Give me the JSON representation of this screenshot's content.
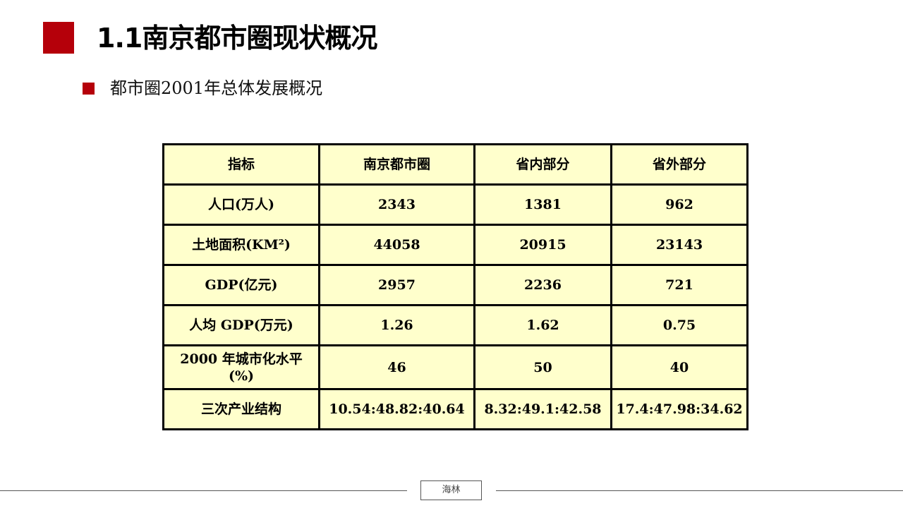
{
  "title": "1.1南京都市圈现状概况",
  "subtitle": "都市圈2001年总体发展概况",
  "table": {
    "headers": [
      "指标",
      "南京都市圈",
      "省内部分",
      "省外部分"
    ],
    "rows": [
      [
        "人口(万人)",
        "2343",
        "1381",
        "962"
      ],
      [
        "土地面积(KM²)",
        "44058",
        "20915",
        "23143"
      ],
      [
        "GDP(亿元)",
        "2957",
        "2236",
        "721"
      ],
      [
        "人均 GDP(万元)",
        "1.26",
        "1.62",
        "0.75"
      ],
      [
        "2000 年城市化水平(%)",
        "46",
        "50",
        "40"
      ],
      [
        "三次产业结构",
        "10.54:48.82:40.64",
        "8.32:49.1:42.58",
        "17.4:47.98:34.62"
      ]
    ]
  },
  "footer": {
    "label": "海林"
  },
  "colors": {
    "accent": "#b5000a",
    "table_bg": "#ffffcc"
  }
}
